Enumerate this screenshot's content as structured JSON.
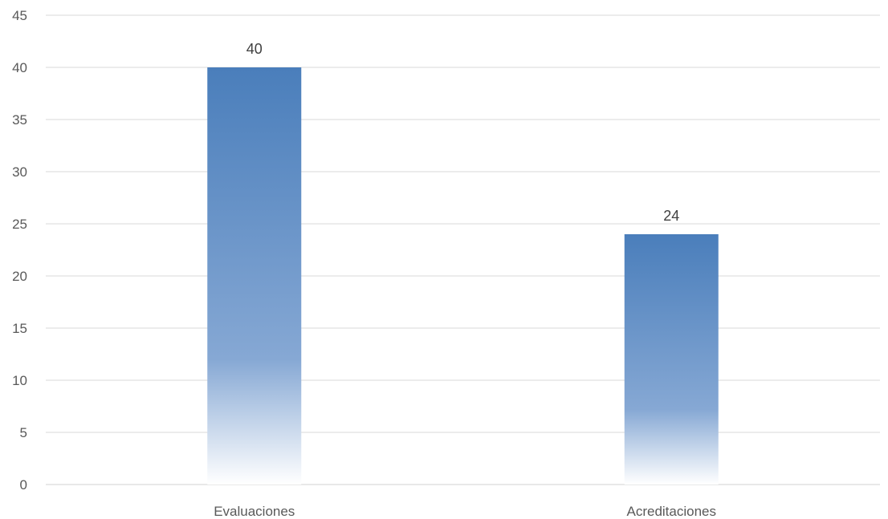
{
  "chart_data": {
    "type": "bar",
    "categories": [
      "Evaluaciones",
      "Acreditaciones"
    ],
    "values": [
      40,
      24
    ],
    "data_labels": [
      "40",
      "24"
    ],
    "title": "",
    "xlabel": "",
    "ylabel": "",
    "ylim": [
      0,
      45
    ],
    "yticks": [
      0,
      5,
      10,
      15,
      20,
      25,
      30,
      35,
      40,
      45
    ],
    "grid": true,
    "legend": "none",
    "bar_color_top": "#4a7ebb",
    "bar_color_bottom": "#ffffff"
  }
}
